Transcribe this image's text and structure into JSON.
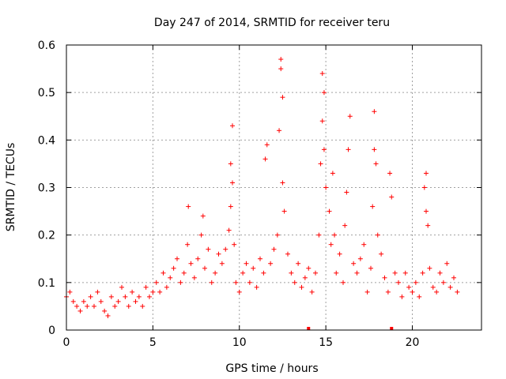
{
  "chart_data": {
    "type": "scatter",
    "title": "Day 247 of 2014, SRMTID for receiver teru",
    "xlabel": "GPS time / hours",
    "ylabel": "SRMTID / TECUs",
    "xlim": [
      0,
      24
    ],
    "ylim": [
      0,
      0.6
    ],
    "xticks": [
      "0",
      "5",
      "10",
      "15",
      "20"
    ],
    "yticks": [
      "0",
      "0.1",
      "0.2",
      "0.3",
      "0.4",
      "0.5",
      "0.6"
    ],
    "grid": true,
    "marker": "plus",
    "color": "#ff0000",
    "series": [
      {
        "name": "SRMTID",
        "x": [
          0.0,
          0.2,
          0.4,
          0.6,
          0.8,
          1.0,
          1.2,
          1.4,
          1.6,
          1.8,
          2.0,
          2.2,
          2.4,
          2.6,
          2.8,
          3.0,
          3.2,
          3.4,
          3.6,
          3.8,
          4.0,
          4.2,
          4.4,
          4.6,
          4.8,
          5.0,
          5.2,
          5.4,
          5.6,
          5.8,
          6.0,
          6.2,
          6.4,
          6.6,
          6.8,
          7.0,
          7.05,
          7.2,
          7.4,
          7.6,
          7.8,
          7.9,
          8.0,
          8.2,
          8.4,
          8.6,
          8.8,
          9.0,
          9.2,
          9.4,
          9.5,
          9.5,
          9.6,
          9.6,
          9.7,
          9.8,
          10.0,
          10.2,
          10.4,
          10.6,
          10.8,
          11.0,
          11.2,
          11.4,
          11.5,
          11.6,
          11.8,
          12.0,
          12.2,
          12.3,
          12.4,
          12.4,
          12.5,
          12.5,
          12.6,
          12.8,
          13.0,
          13.2,
          13.4,
          13.6,
          13.8,
          14.0,
          14.2,
          14.4,
          14.6,
          14.7,
          14.8,
          14.8,
          14.9,
          14.9,
          15.0,
          15.2,
          15.3,
          15.4,
          15.5,
          15.6,
          15.8,
          16.0,
          16.1,
          16.2,
          16.3,
          16.4,
          16.6,
          16.8,
          17.0,
          17.2,
          17.4,
          17.6,
          17.7,
          17.8,
          17.8,
          17.9,
          18.0,
          18.2,
          18.4,
          18.6,
          18.7,
          18.8,
          19.0,
          19.2,
          19.4,
          19.6,
          19.8,
          20.0,
          20.2,
          20.4,
          20.6,
          20.7,
          20.8,
          20.8,
          20.9,
          21.0,
          21.2,
          21.4,
          21.6,
          21.8,
          22.0,
          22.2,
          22.4,
          22.6
        ],
        "y": [
          0.07,
          0.08,
          0.06,
          0.05,
          0.04,
          0.06,
          0.05,
          0.07,
          0.05,
          0.08,
          0.06,
          0.04,
          0.03,
          0.07,
          0.05,
          0.06,
          0.09,
          0.07,
          0.05,
          0.08,
          0.06,
          0.07,
          0.05,
          0.09,
          0.07,
          0.08,
          0.1,
          0.08,
          0.12,
          0.09,
          0.11,
          0.13,
          0.15,
          0.1,
          0.12,
          0.18,
          0.26,
          0.14,
          0.11,
          0.15,
          0.2,
          0.24,
          0.13,
          0.17,
          0.1,
          0.12,
          0.16,
          0.14,
          0.17,
          0.21,
          0.26,
          0.35,
          0.43,
          0.31,
          0.18,
          0.1,
          0.08,
          0.12,
          0.14,
          0.1,
          0.13,
          0.09,
          0.15,
          0.12,
          0.36,
          0.39,
          0.14,
          0.17,
          0.2,
          0.42,
          0.55,
          0.57,
          0.49,
          0.31,
          0.25,
          0.16,
          0.12,
          0.1,
          0.14,
          0.09,
          0.11,
          0.13,
          0.08,
          0.12,
          0.2,
          0.35,
          0.44,
          0.54,
          0.5,
          0.38,
          0.3,
          0.25,
          0.18,
          0.33,
          0.2,
          0.12,
          0.16,
          0.1,
          0.22,
          0.29,
          0.38,
          0.45,
          0.14,
          0.12,
          0.15,
          0.18,
          0.08,
          0.13,
          0.26,
          0.38,
          0.46,
          0.35,
          0.2,
          0.16,
          0.11,
          0.08,
          0.33,
          0.28,
          0.12,
          0.1,
          0.07,
          0.12,
          0.09,
          0.08,
          0.1,
          0.07,
          0.12,
          0.3,
          0.33,
          0.25,
          0.22,
          0.13,
          0.09,
          0.08,
          0.12,
          0.1,
          0.14,
          0.09,
          0.11,
          0.08
        ]
      }
    ],
    "zero_markers": [
      14.0,
      18.8
    ]
  }
}
